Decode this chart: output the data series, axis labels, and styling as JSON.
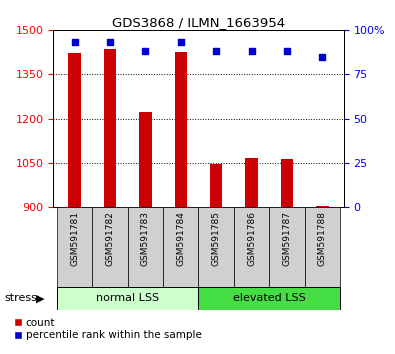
{
  "title": "GDS3868 / ILMN_1663954",
  "samples": [
    "GSM591781",
    "GSM591782",
    "GSM591783",
    "GSM591784",
    "GSM591785",
    "GSM591786",
    "GSM591787",
    "GSM591788"
  ],
  "counts": [
    1422,
    1437,
    1222,
    1425,
    1045,
    1068,
    1062,
    905
  ],
  "percentiles": [
    93,
    93,
    88,
    93,
    88,
    88,
    88,
    85
  ],
  "ylim_left": [
    900,
    1500
  ],
  "yticks_left": [
    900,
    1050,
    1200,
    1350,
    1500
  ],
  "ylim_right": [
    0,
    100
  ],
  "yticks_right": [
    0,
    25,
    50,
    75,
    100
  ],
  "bar_color": "#cc0000",
  "dot_color": "#0000cc",
  "group1_label": "normal LSS",
  "group2_label": "elevated LSS",
  "group1_color": "#ccffcc",
  "group2_color": "#44dd44",
  "stress_label": "stress",
  "legend_count": "count",
  "legend_percentile": "percentile rank within the sample",
  "background_color": "#d0d0d0",
  "group1_indices": [
    0,
    1,
    2,
    3
  ],
  "group2_indices": [
    4,
    5,
    6,
    7
  ]
}
